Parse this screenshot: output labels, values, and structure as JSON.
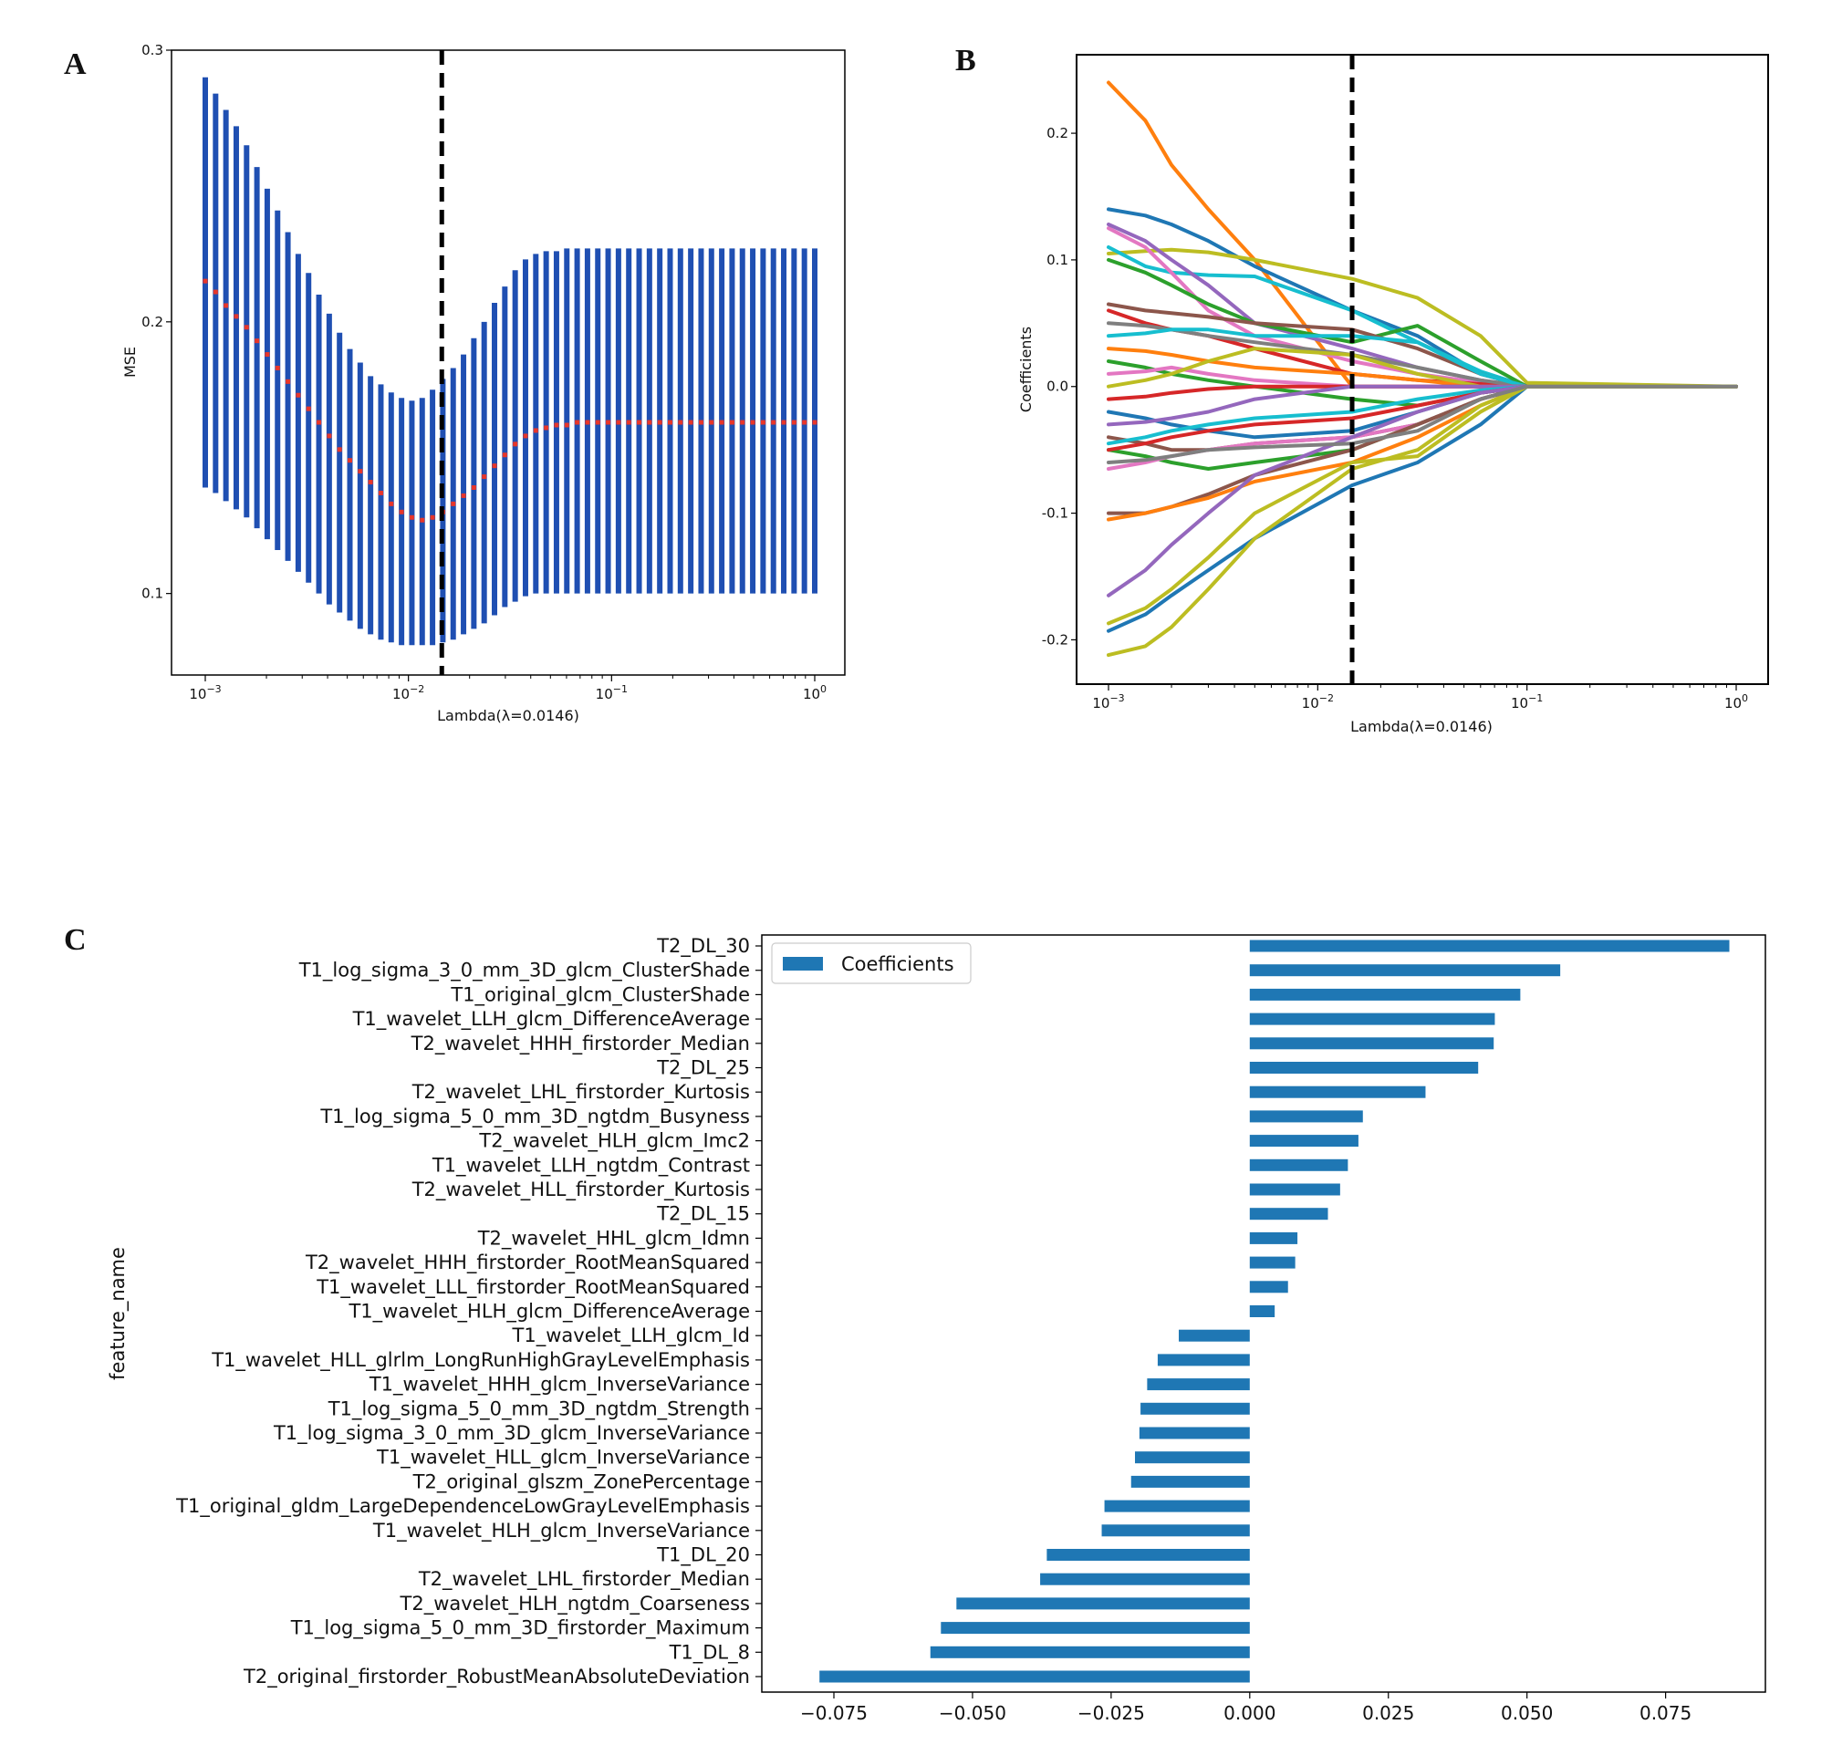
{
  "panels": {
    "a": "A",
    "b": "B",
    "c": "C"
  },
  "colors": {
    "err": "#1f4fb2",
    "mean": "#e8362a",
    "bar": "#1f77b4",
    "vline": "#000000"
  },
  "chart_data": [
    {
      "id": "A",
      "type": "errorbar",
      "xscale": "log",
      "xlim": [
        0.001,
        1
      ],
      "ylim": [
        0.07,
        0.3
      ],
      "xlabel": "Lambda(λ=0.0146)",
      "ylabel": "MSE",
      "xticks": [
        {
          "v": 0.001,
          "b": "10",
          "e": "−3"
        },
        {
          "v": 0.01,
          "b": "10",
          "e": "−2"
        },
        {
          "v": 0.1,
          "b": "10",
          "e": "−1"
        },
        {
          "v": 1,
          "b": "10",
          "e": "0"
        }
      ],
      "yticks": [
        0.1,
        0.2,
        0.3
      ],
      "lambda_opt": 0.0146,
      "n_points": 60,
      "mean": [
        0.215,
        0.211,
        0.206,
        0.202,
        0.198,
        0.193,
        0.188,
        0.183,
        0.178,
        0.173,
        0.168,
        0.163,
        0.158,
        0.153,
        0.149,
        0.145,
        0.141,
        0.137,
        0.133,
        0.13,
        0.128,
        0.127,
        0.128,
        0.13,
        0.133,
        0.136,
        0.139,
        0.143,
        0.147,
        0.151,
        0.155,
        0.158,
        0.16,
        0.161,
        0.162,
        0.162,
        0.163,
        0.163,
        0.163,
        0.163,
        0.163,
        0.163,
        0.163,
        0.163,
        0.163,
        0.163,
        0.163,
        0.163,
        0.163,
        0.163,
        0.163,
        0.163,
        0.163,
        0.163,
        0.163,
        0.163,
        0.163,
        0.163,
        0.163,
        0.163
      ],
      "upper": [
        0.29,
        0.284,
        0.278,
        0.272,
        0.265,
        0.257,
        0.249,
        0.241,
        0.233,
        0.225,
        0.218,
        0.21,
        0.203,
        0.196,
        0.19,
        0.185,
        0.18,
        0.177,
        0.174,
        0.172,
        0.171,
        0.172,
        0.175,
        0.179,
        0.183,
        0.188,
        0.194,
        0.2,
        0.207,
        0.213,
        0.219,
        0.223,
        0.225,
        0.226,
        0.226,
        0.227,
        0.227,
        0.227,
        0.227,
        0.227,
        0.227,
        0.227,
        0.227,
        0.227,
        0.227,
        0.227,
        0.227,
        0.227,
        0.227,
        0.227,
        0.227,
        0.227,
        0.227,
        0.227,
        0.227,
        0.227,
        0.227,
        0.227,
        0.227,
        0.227
      ],
      "lower": [
        0.139,
        0.137,
        0.134,
        0.131,
        0.128,
        0.124,
        0.12,
        0.116,
        0.112,
        0.108,
        0.104,
        0.1,
        0.096,
        0.093,
        0.09,
        0.087,
        0.085,
        0.083,
        0.082,
        0.081,
        0.081,
        0.081,
        0.081,
        0.082,
        0.083,
        0.085,
        0.087,
        0.089,
        0.092,
        0.095,
        0.097,
        0.099,
        0.1,
        0.1,
        0.1,
        0.1,
        0.1,
        0.1,
        0.1,
        0.1,
        0.1,
        0.1,
        0.1,
        0.1,
        0.1,
        0.1,
        0.1,
        0.1,
        0.1,
        0.1,
        0.1,
        0.1,
        0.1,
        0.1,
        0.1,
        0.1,
        0.1,
        0.1,
        0.1,
        0.1
      ]
    },
    {
      "id": "B",
      "type": "line",
      "xscale": "log",
      "xlim": [
        0.00075,
        1.25
      ],
      "ylim": [
        -0.235,
        0.262
      ],
      "xlabel": "Lambda(λ=0.0146)",
      "ylabel": "Coefficients",
      "xticks": [
        {
          "v": 0.001,
          "b": "10",
          "e": "−3"
        },
        {
          "v": 0.01,
          "b": "10",
          "e": "−2"
        },
        {
          "v": 0.1,
          "b": "10",
          "e": "−1"
        },
        {
          "v": 1,
          "b": "10",
          "e": "0"
        }
      ],
      "yticks": [
        -0.2,
        -0.1,
        0.0,
        0.1,
        0.2
      ],
      "ytick_labels": [
        "-0.2",
        "-0.1",
        "0.0",
        "0.1",
        "0.2"
      ],
      "lambda_opt": 0.0146,
      "x_points": [
        0.001,
        0.0015,
        0.002,
        0.003,
        0.005,
        0.0146,
        0.03,
        0.06,
        0.1,
        1
      ],
      "series": [
        {
          "name": "c1",
          "color": "#ff7f0e",
          "values": [
            0.24,
            0.21,
            0.175,
            0.14,
            0.1,
            0.0,
            0.0,
            0.0,
            0.0,
            0.0
          ]
        },
        {
          "name": "c2",
          "color": "#1f77b4",
          "values": [
            0.14,
            0.135,
            0.128,
            0.115,
            0.095,
            0.06,
            0.04,
            0.01,
            0.0,
            0.0
          ]
        },
        {
          "name": "c3",
          "color": "#bcbd22",
          "values": [
            0.105,
            0.107,
            0.108,
            0.106,
            0.1,
            0.085,
            0.07,
            0.04,
            0.003,
            0.0
          ]
        },
        {
          "name": "c4",
          "color": "#17becf",
          "values": [
            0.11,
            0.095,
            0.09,
            0.088,
            0.087,
            0.06,
            0.035,
            0.012,
            0.0,
            0.0
          ]
        },
        {
          "name": "c5",
          "color": "#e377c2",
          "values": [
            0.125,
            0.11,
            0.09,
            0.06,
            0.04,
            0.02,
            0.01,
            0.003,
            0.0,
            0.0
          ]
        },
        {
          "name": "c6",
          "color": "#9467bd",
          "values": [
            0.128,
            0.115,
            0.1,
            0.08,
            0.05,
            0.03,
            0.015,
            0.005,
            0.0,
            0.0
          ]
        },
        {
          "name": "c7",
          "color": "#2ca02c",
          "values": [
            0.1,
            0.09,
            0.08,
            0.065,
            0.05,
            0.035,
            0.048,
            0.02,
            0.0,
            0.0
          ]
        },
        {
          "name": "c8",
          "color": "#8c564b",
          "values": [
            0.065,
            0.06,
            0.058,
            0.055,
            0.05,
            0.045,
            0.03,
            0.01,
            0.0,
            0.0
          ]
        },
        {
          "name": "c9",
          "color": "#d62728",
          "values": [
            0.06,
            0.05,
            0.045,
            0.04,
            0.03,
            0.01,
            0.005,
            0.002,
            0.0,
            0.0
          ]
        },
        {
          "name": "c10",
          "color": "#7f7f7f",
          "values": [
            0.05,
            0.048,
            0.045,
            0.04,
            0.035,
            0.025,
            0.015,
            0.005,
            0.0,
            0.0
          ]
        },
        {
          "name": "c11",
          "color": "#17becf",
          "values": [
            0.04,
            0.042,
            0.045,
            0.045,
            0.04,
            0.04,
            0.035,
            0.01,
            0.0,
            0.0
          ]
        },
        {
          "name": "c12",
          "color": "#ff7f0e",
          "values": [
            0.03,
            0.028,
            0.025,
            0.02,
            0.015,
            0.01,
            0.005,
            0.0,
            0.0,
            0.0
          ]
        },
        {
          "name": "c13",
          "color": "#2ca02c",
          "values": [
            0.02,
            0.015,
            0.01,
            0.005,
            0.0,
            -0.01,
            -0.015,
            -0.005,
            0.0,
            0.0
          ]
        },
        {
          "name": "c14",
          "color": "#e377c2",
          "values": [
            0.01,
            0.012,
            0.015,
            0.01,
            0.005,
            0.0,
            0.0,
            0.0,
            0.0,
            0.0
          ]
        },
        {
          "name": "c15",
          "color": "#bcbd22",
          "values": [
            0.0,
            0.005,
            0.01,
            0.02,
            0.03,
            0.025,
            0.01,
            0.0,
            0.0,
            0.0
          ]
        },
        {
          "name": "c16",
          "color": "#d62728",
          "values": [
            -0.01,
            -0.008,
            -0.005,
            -0.002,
            0.0,
            0.0,
            0.0,
            0.0,
            0.0,
            0.0
          ]
        },
        {
          "name": "c17",
          "color": "#1f77b4",
          "values": [
            -0.02,
            -0.025,
            -0.03,
            -0.035,
            -0.04,
            -0.035,
            -0.02,
            -0.005,
            0.0,
            0.0
          ]
        },
        {
          "name": "c18",
          "color": "#9467bd",
          "values": [
            -0.03,
            -0.028,
            -0.025,
            -0.02,
            -0.01,
            0.0,
            0.0,
            0.0,
            0.0,
            0.0
          ]
        },
        {
          "name": "c19",
          "color": "#8c564b",
          "values": [
            -0.04,
            -0.045,
            -0.05,
            -0.05,
            -0.045,
            -0.04,
            -0.03,
            -0.01,
            0.0,
            0.0
          ]
        },
        {
          "name": "c20",
          "color": "#17becf",
          "values": [
            -0.045,
            -0.04,
            -0.035,
            -0.03,
            -0.025,
            -0.02,
            -0.01,
            -0.003,
            0.0,
            0.0
          ]
        },
        {
          "name": "c21",
          "color": "#2ca02c",
          "values": [
            -0.05,
            -0.055,
            -0.06,
            -0.065,
            -0.06,
            -0.05,
            -0.03,
            -0.01,
            0.0,
            0.0
          ]
        },
        {
          "name": "c22",
          "color": "#e377c2",
          "values": [
            -0.065,
            -0.06,
            -0.055,
            -0.05,
            -0.045,
            -0.04,
            -0.03,
            -0.01,
            0.0,
            0.0
          ]
        },
        {
          "name": "c23",
          "color": "#d62728",
          "values": [
            -0.05,
            -0.045,
            -0.04,
            -0.035,
            -0.03,
            -0.025,
            -0.015,
            -0.005,
            0.0,
            0.0
          ]
        },
        {
          "name": "c24",
          "color": "#8c564b",
          "values": [
            -0.1,
            -0.1,
            -0.095,
            -0.085,
            -0.07,
            -0.05,
            -0.03,
            -0.01,
            0.0,
            0.0
          ]
        },
        {
          "name": "c25",
          "color": "#ff7f0e",
          "values": [
            -0.105,
            -0.1,
            -0.095,
            -0.088,
            -0.075,
            -0.06,
            -0.04,
            -0.015,
            0.0,
            0.0
          ]
        },
        {
          "name": "c26",
          "color": "#9467bd",
          "values": [
            -0.165,
            -0.145,
            -0.125,
            -0.1,
            -0.07,
            -0.04,
            -0.02,
            -0.005,
            0.0,
            0.0
          ]
        },
        {
          "name": "c27",
          "color": "#1f77b4",
          "values": [
            -0.193,
            -0.18,
            -0.165,
            -0.145,
            -0.12,
            -0.078,
            -0.06,
            -0.03,
            0.0,
            0.0
          ]
        },
        {
          "name": "c28",
          "color": "#bcbd22",
          "values": [
            -0.187,
            -0.175,
            -0.16,
            -0.135,
            -0.1,
            -0.06,
            -0.055,
            -0.02,
            0.0,
            0.0
          ]
        },
        {
          "name": "c29",
          "color": "#bcbd22",
          "values": [
            -0.212,
            -0.205,
            -0.19,
            -0.16,
            -0.12,
            -0.065,
            -0.05,
            -0.015,
            0.0,
            0.0
          ]
        },
        {
          "name": "c30",
          "color": "#7f7f7f",
          "values": [
            -0.06,
            -0.058,
            -0.055,
            -0.05,
            -0.048,
            -0.045,
            -0.035,
            -0.01,
            0.0,
            0.0
          ]
        }
      ]
    },
    {
      "id": "C",
      "type": "barh",
      "xlim": [
        -0.088,
        0.093
      ],
      "ylabel": "feature_name",
      "legend": "Coefficients",
      "legend_loc": "upper-left",
      "xticks": [
        -0.075,
        -0.05,
        -0.025,
        0.0,
        0.025,
        0.05,
        0.075
      ],
      "xtick_labels": [
        "−0.075",
        "−0.050",
        "−0.025",
        "0.000",
        "0.025",
        "0.050",
        "0.075"
      ],
      "categories": [
        "T2_DL_30",
        "T1_log_sigma_3_0_mm_3D_glcm_ClusterShade",
        "T1_original_glcm_ClusterShade",
        "T1_wavelet_LLH_glcm_DifferenceAverage",
        "T2_wavelet_HHH_firstorder_Median",
        "T2_DL_25",
        "T2_wavelet_LHL_firstorder_Kurtosis",
        "T1_log_sigma_5_0_mm_3D_ngtdm_Busyness",
        "T2_wavelet_HLH_glcm_Imc2",
        "T1_wavelet_LLH_ngtdm_Contrast",
        "T2_wavelet_HLL_firstorder_Kurtosis",
        "T2_DL_15",
        "T2_wavelet_HHL_glcm_Idmn",
        "T2_wavelet_HHH_firstorder_RootMeanSquared",
        "T1_wavelet_LLL_firstorder_RootMeanSquared",
        "T1_wavelet_HLH_glcm_DifferenceAverage",
        "T1_wavelet_LLH_glcm_Id",
        "T1_wavelet_HLL_glrlm_LongRunHighGrayLevelEmphasis",
        "T1_wavelet_HHH_glcm_InverseVariance",
        "T1_log_sigma_5_0_mm_3D_ngtdm_Strength",
        "T1_log_sigma_3_0_mm_3D_glcm_InverseVariance",
        "T1_wavelet_HLL_glcm_InverseVariance",
        "T2_original_glszm_ZonePercentage",
        "T1_original_gldm_LargeDependenceLowGrayLevelEmphasis",
        "T1_wavelet_HLH_glcm_InverseVariance",
        "T1_DL_20",
        "T2_wavelet_LHL_firstorder_Median",
        "T2_wavelet_HLH_ngtdm_Coarseness",
        "T1_log_sigma_5_0_mm_3D_firstorder_Maximum",
        "T1_DL_8",
        "T2_original_firstorder_RobustMeanAbsoluteDeviation"
      ],
      "values": [
        0.0865,
        0.056,
        0.0488,
        0.0442,
        0.044,
        0.0412,
        0.0317,
        0.0204,
        0.0196,
        0.0177,
        0.0163,
        0.0141,
        0.0086,
        0.0082,
        0.0069,
        0.0045,
        -0.0128,
        -0.0166,
        -0.0185,
        -0.0197,
        -0.0199,
        -0.0207,
        -0.0214,
        -0.0262,
        -0.0267,
        -0.0366,
        -0.0378,
        -0.0529,
        -0.0557,
        -0.0576,
        -0.0776
      ]
    }
  ]
}
